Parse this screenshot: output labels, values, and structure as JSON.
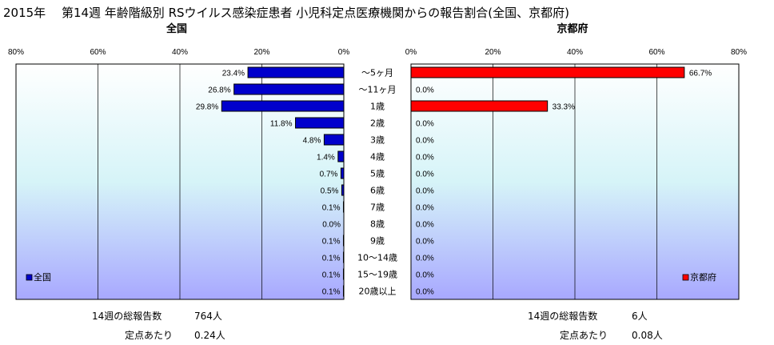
{
  "title": "2015年　 第14週 年齢階級別 RSウイルス感染症患者 小児科定点医療機関からの報告割合(全国、京都府)",
  "chart_data": [
    {
      "type": "bar",
      "orientation": "horizontal",
      "direction": "right-to-left",
      "title": "全国",
      "categories": [
        "～5ヶ月",
        "～11ヶ月",
        "1歳",
        "2歳",
        "3歳",
        "4歳",
        "5歳",
        "6歳",
        "7歳",
        "8歳",
        "9歳",
        "10～14歳",
        "15～19歳",
        "20歳以上"
      ],
      "series": [
        {
          "name": "全国",
          "values": [
            23.4,
            26.8,
            29.8,
            11.8,
            4.8,
            1.4,
            0.7,
            0.5,
            0.1,
            0.0,
            0.1,
            0.1,
            0.1,
            0.1
          ],
          "labels": [
            "23.4%",
            "26.8%",
            "29.8%",
            "11.8%",
            "4.8%",
            "1.4%",
            "0.7%",
            "0.5%",
            "0.1%",
            "0.0%",
            "0.1%",
            "0.1%",
            "0.1%",
            "0.1%"
          ],
          "color": "#0000cc"
        }
      ],
      "xlim": [
        0,
        80
      ],
      "ticks": [
        "80%",
        "60%",
        "40%",
        "20%",
        "0%"
      ],
      "grid": true,
      "legend": "bottom-left"
    },
    {
      "type": "bar",
      "orientation": "horizontal",
      "direction": "left-to-right",
      "title": "京都府",
      "categories": [
        "～5ヶ月",
        "～11ヶ月",
        "1歳",
        "2歳",
        "3歳",
        "4歳",
        "5歳",
        "6歳",
        "7歳",
        "8歳",
        "9歳",
        "10～14歳",
        "15～19歳",
        "20歳以上"
      ],
      "series": [
        {
          "name": "京都府",
          "values": [
            66.7,
            0.0,
            33.3,
            0.0,
            0.0,
            0.0,
            0.0,
            0.0,
            0.0,
            0.0,
            0.0,
            0.0,
            0.0,
            0.0
          ],
          "labels": [
            "66.7%",
            "0.0%",
            "33.3%",
            "0.0%",
            "0.0%",
            "0.0%",
            "0.0%",
            "0.0%",
            "0.0%",
            "0.0%",
            "0.0%",
            "0.0%",
            "0.0%",
            "0.0%"
          ],
          "color": "#ff0000"
        }
      ],
      "xlim": [
        0,
        80
      ],
      "ticks": [
        "0%",
        "20%",
        "40%",
        "60%",
        "80%"
      ],
      "grid": true,
      "legend": "bottom-right"
    }
  ],
  "colors": {
    "plot_top": "#ffffff",
    "plot_bottom": "#a8a8ff",
    "plot_mid": "#d6f4f8"
  },
  "stats": {
    "national": {
      "total_label": "14週の総報告数",
      "total_value": "764人",
      "per_label": "定点あたり",
      "per_value": "0.24人"
    },
    "kyoto": {
      "total_label": "14週の総報告数",
      "total_value": "6人",
      "per_label": "定点あたり",
      "per_value": "0.08人"
    }
  }
}
